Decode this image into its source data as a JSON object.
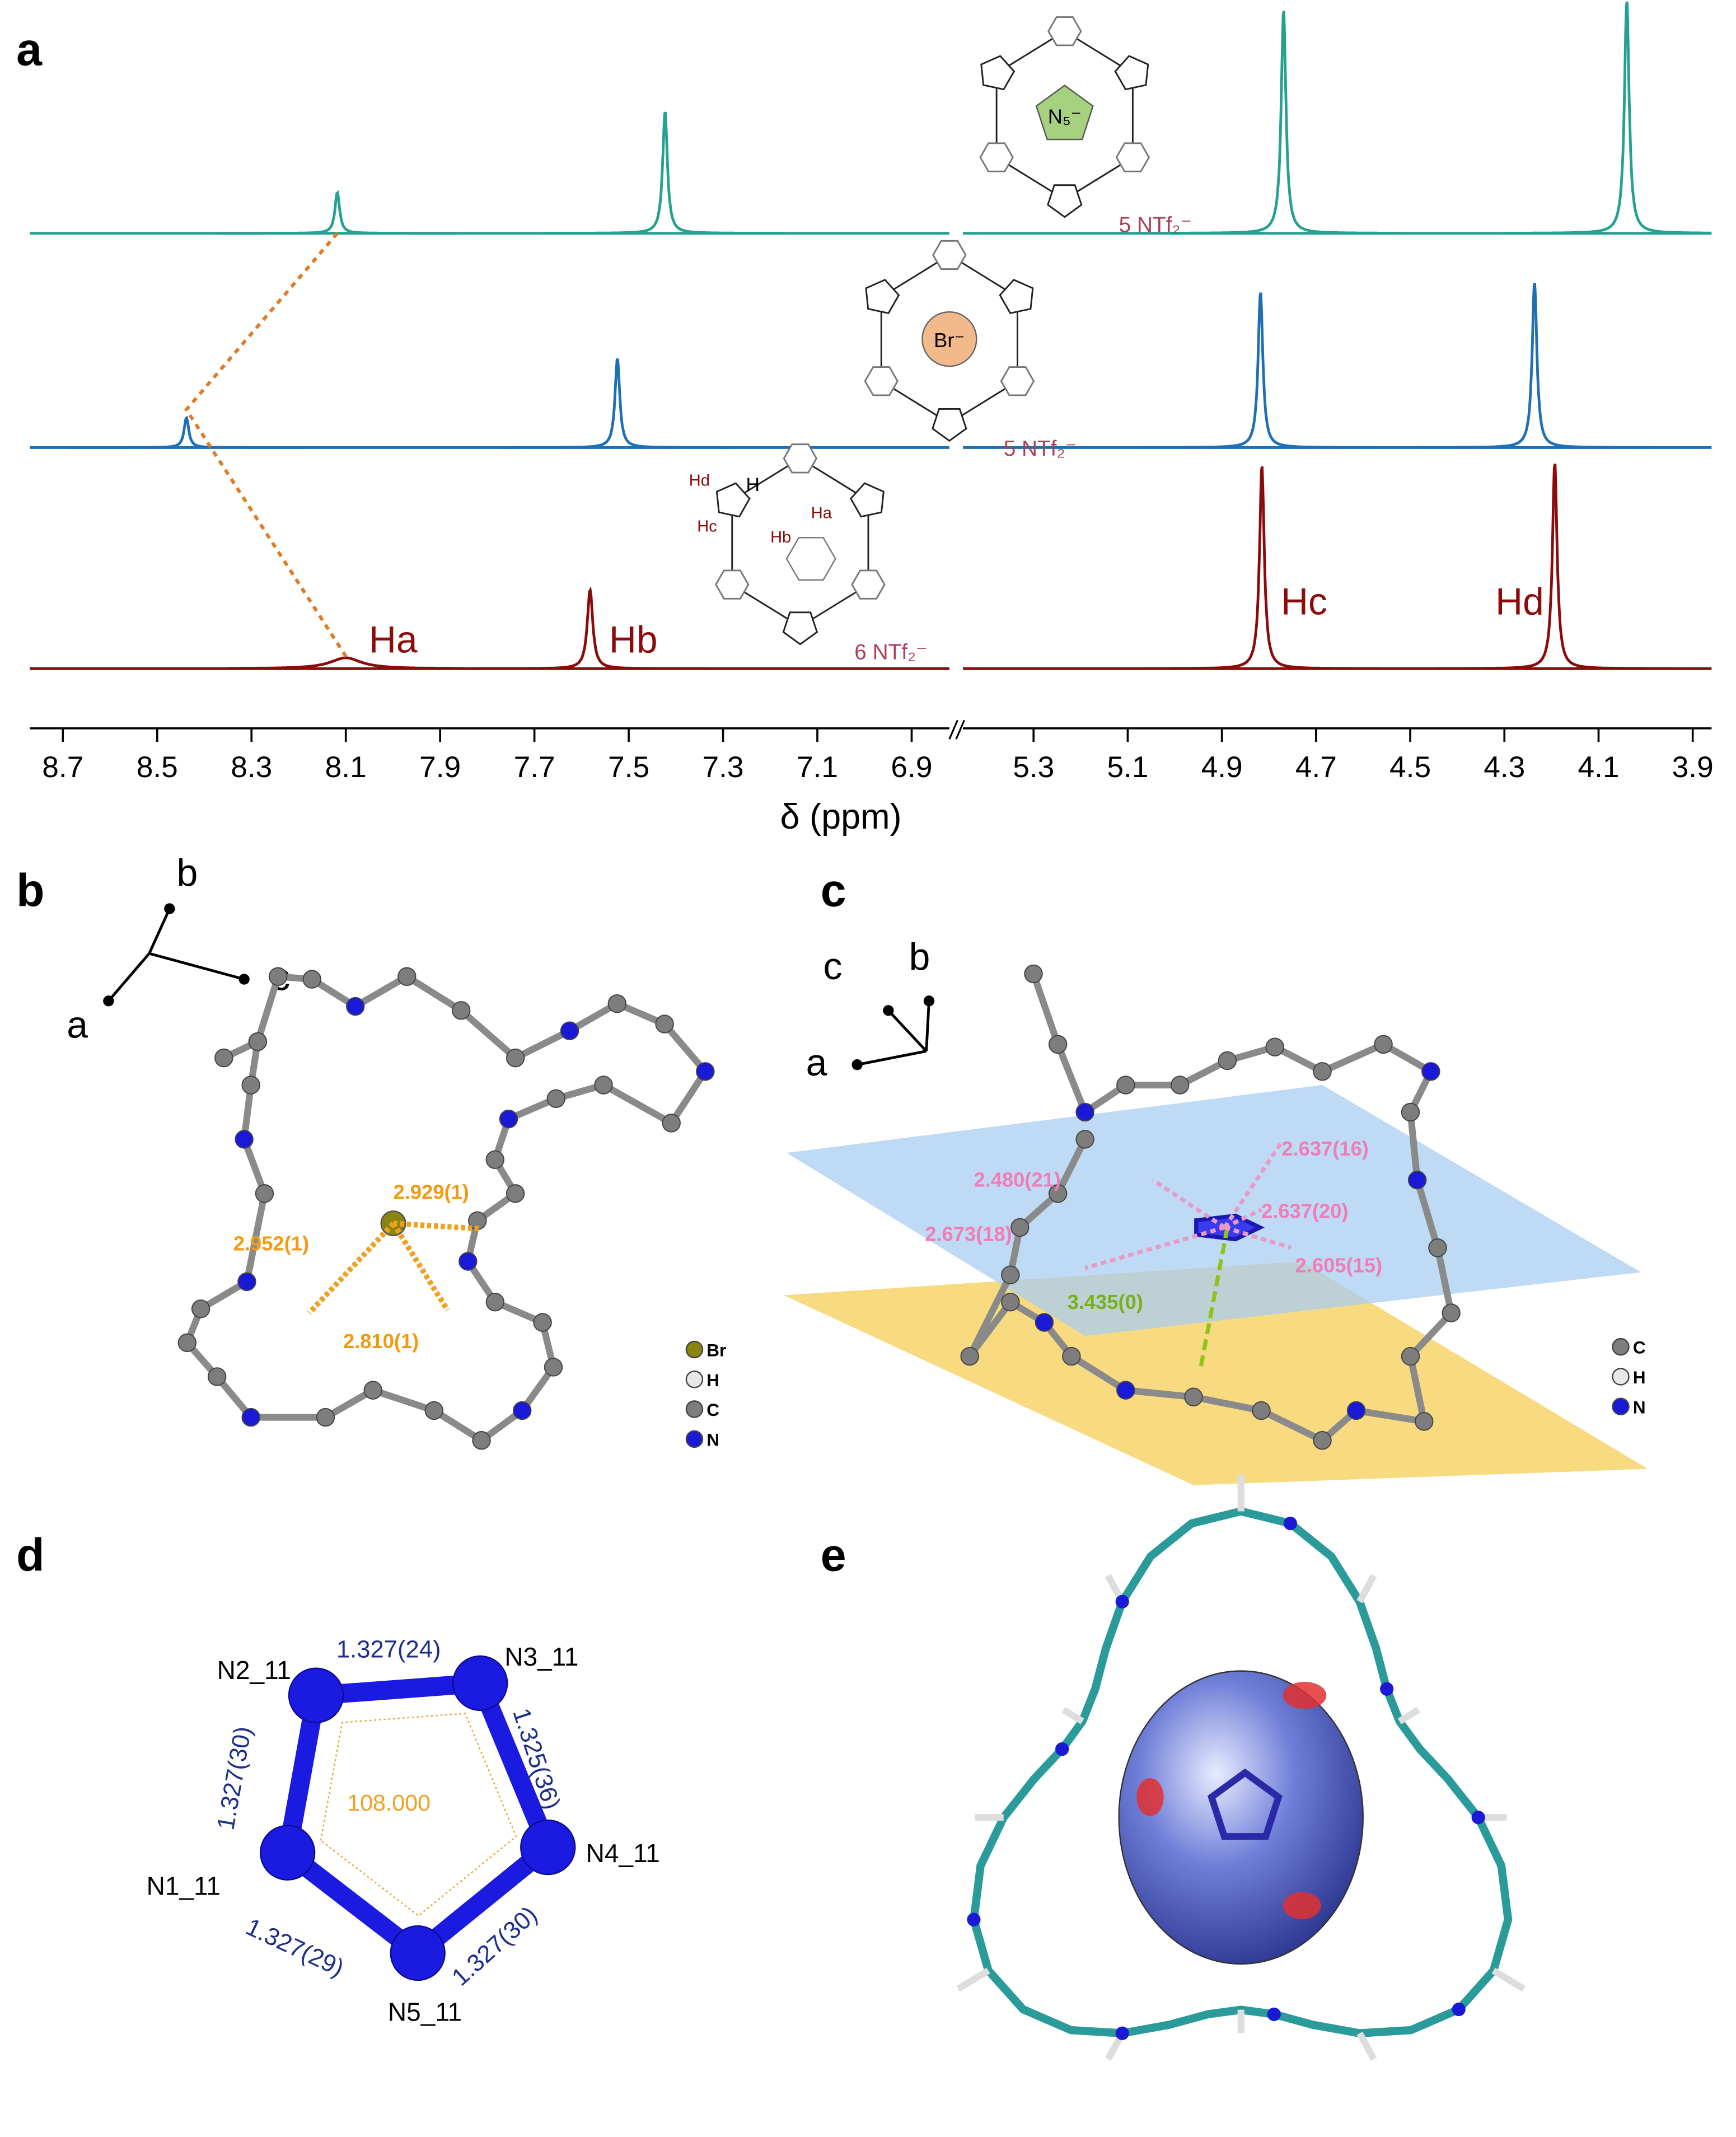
{
  "panel_labels": [
    "a",
    "b",
    "c",
    "d",
    "e"
  ],
  "chart_data": {
    "type": "spectrum",
    "x_label": "δ (ppm)",
    "axis_segments": [
      {
        "xlim": [
          8.77,
          6.82
        ],
        "xticks": [
          8.7,
          8.5,
          8.3,
          8.1,
          7.9,
          7.7,
          7.5,
          7.3,
          7.1,
          6.9
        ]
      },
      {
        "xlim": [
          5.45,
          3.86
        ],
        "xticks": [
          5.3,
          5.1,
          4.9,
          4.7,
          4.5,
          4.3,
          4.1,
          3.9
        ]
      }
    ],
    "link_color": "#e07b26",
    "series": [
      {
        "color": "#26a091",
        "guest": "N₅⁻",
        "counter_ion": "5 NTf₂⁻",
        "peaks": [
          {
            "ppm": 8.118,
            "height": 30,
            "fwhm": 0.012
          },
          {
            "ppm": 7.423,
            "height": 90,
            "fwhm": 0.012
          },
          {
            "ppm": 4.769,
            "height": 165,
            "fwhm": 0.012
          },
          {
            "ppm": 4.04,
            "height": 172,
            "fwhm": 0.012
          }
        ]
      },
      {
        "color": "#1f6fb5",
        "guest": "Br⁻",
        "counter_ion": "5 NTf₂⁻",
        "peaks": [
          {
            "ppm": 8.438,
            "height": 22,
            "fwhm": 0.012
          },
          {
            "ppm": 7.524,
            "height": 66,
            "fwhm": 0.012
          },
          {
            "ppm": 4.818,
            "height": 115,
            "fwhm": 0.012
          },
          {
            "ppm": 4.236,
            "height": 122,
            "fwhm": 0.012
          }
        ]
      },
      {
        "color": "#8b0a0a",
        "counter_ion": "6 NTf₂⁻",
        "atom_labels": [
          "Hd",
          "Hc",
          "Hb",
          "Ha",
          "H"
        ],
        "peaks": [
          {
            "ppm": 8.1,
            "height": 8,
            "fwhm": 0.08,
            "label": "Ha"
          },
          {
            "ppm": 7.582,
            "height": 58,
            "fwhm": 0.014,
            "label": "Hb"
          },
          {
            "ppm": 4.815,
            "height": 150,
            "fwhm": 0.012,
            "label": "Hc"
          },
          {
            "ppm": 4.193,
            "height": 152,
            "fwhm": 0.012,
            "label": "Hd"
          }
        ]
      }
    ]
  },
  "panel_b": {
    "axes": [
      "a",
      "b",
      "c"
    ],
    "distances": [
      "2.929(1)",
      "2.952(1)",
      "2.810(1)"
    ],
    "legend": [
      "Br",
      "H",
      "C",
      "N"
    ]
  },
  "panel_c": {
    "axes": [
      "c",
      "b",
      "a"
    ],
    "distances": [
      "2.480(21)",
      "2.637(16)",
      "2.637(20)",
      "2.673(18)",
      "2.605(15)"
    ],
    "centroid_distance": "3.435(0)",
    "legend": [
      "C",
      "H",
      "N"
    ]
  },
  "panel_d": {
    "atoms": [
      "N1_11",
      "N2_11",
      "N3_11",
      "N4_11",
      "N5_11"
    ],
    "bonds": [
      "1.327(24)",
      "1.325(36)",
      "1.327(30)",
      "1.327(29)",
      "1.327(30)"
    ],
    "angle": "108.000"
  }
}
